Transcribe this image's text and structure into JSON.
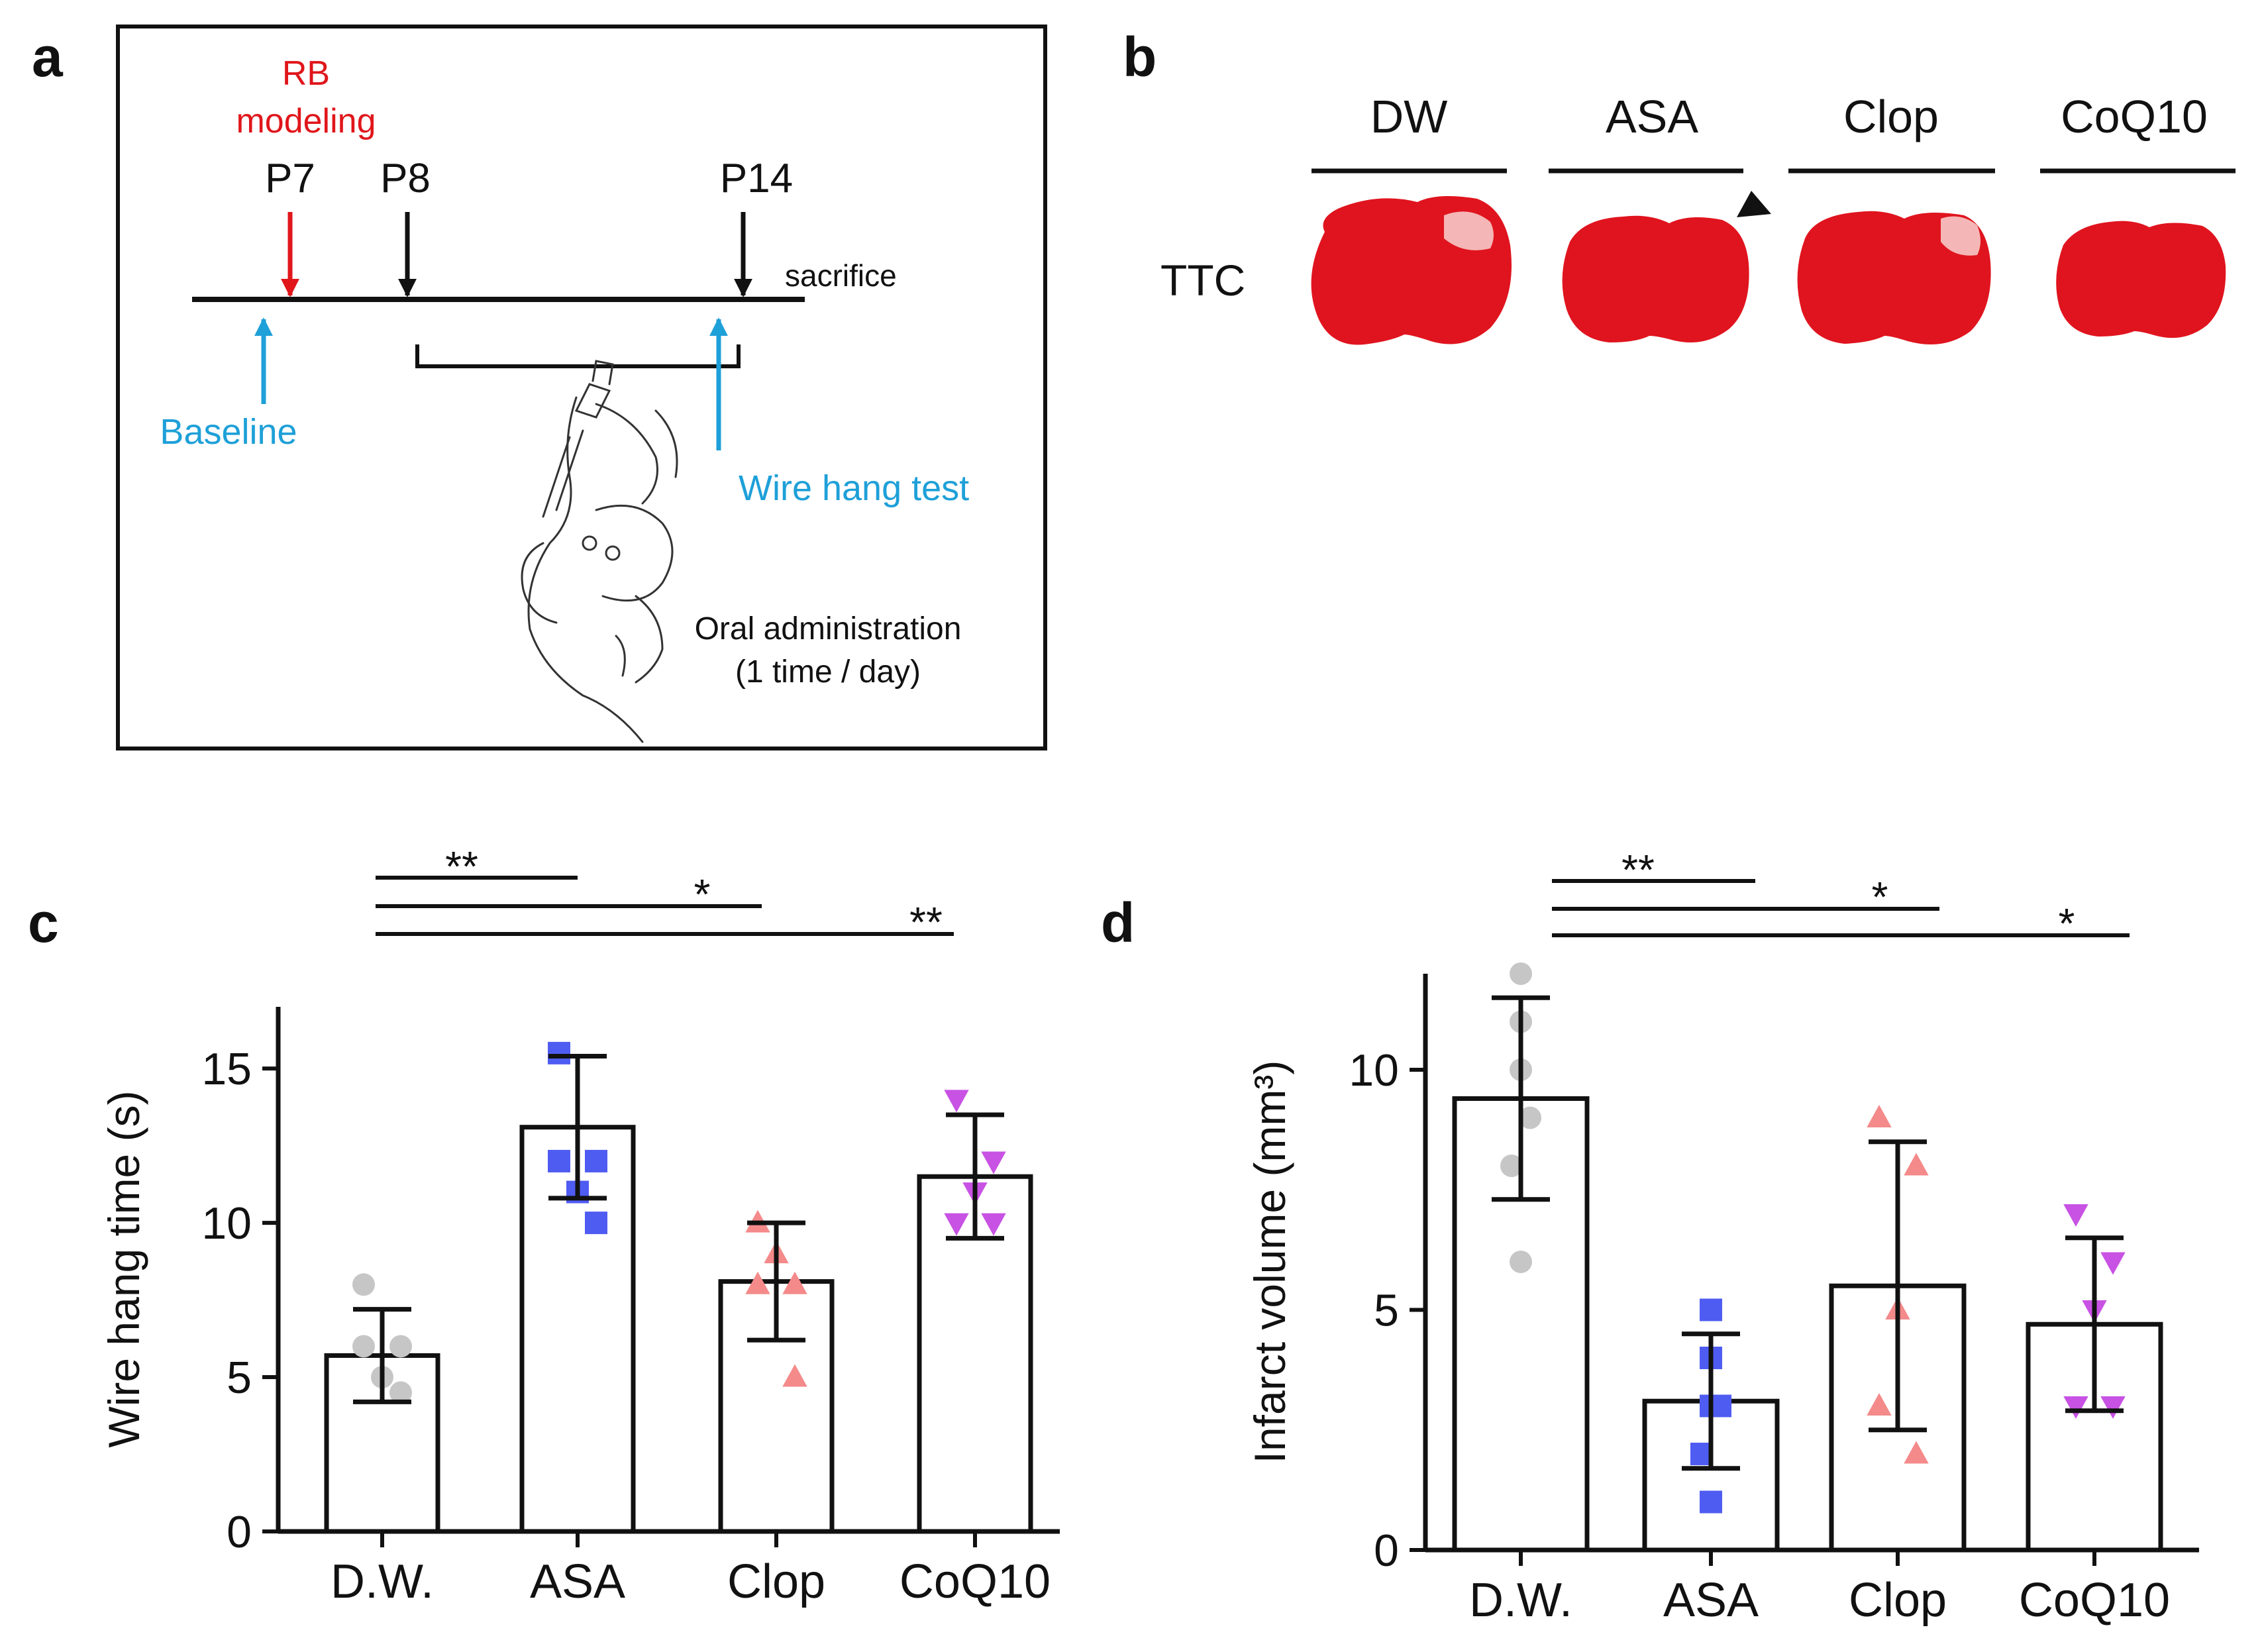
{
  "colors": {
    "red": "#e0161b",
    "blue": "#1ea0d8",
    "black": "#111111",
    "grey_point": "#c6c6c6",
    "asa_point": "#4f5cf2",
    "clop_point": "#f48a8a",
    "coq10_point": "#c852e3",
    "brain": "#e0141e"
  },
  "panel_a": {
    "label": "a",
    "rb_line1": "RB",
    "rb_line2": "modeling",
    "p7": "P7",
    "p8": "P8",
    "p14": "P14",
    "sacrifice": "sacrifice",
    "baseline": "Baseline",
    "wire_hang": "Wire hang test",
    "oral_line1": "Oral administration",
    "oral_line2": "(1 time / day)",
    "illustration_icon": "mouse-oral-gavage-drawing"
  },
  "panel_b": {
    "label": "b",
    "row_label": "TTC",
    "groups": [
      "DW",
      "ASA",
      "Clop",
      "CoQ10"
    ],
    "arrowhead_icon": "triangle-arrowhead-icon"
  },
  "panel_c": {
    "label": "c",
    "sig": [
      "**",
      "*",
      "**"
    ]
  },
  "panel_d": {
    "label": "d",
    "sig": [
      "**",
      "*",
      "*"
    ]
  },
  "chart_data": [
    {
      "panel": "c",
      "type": "bar",
      "categories": [
        "D.W.",
        "ASA",
        "Clop",
        "CoQ10"
      ],
      "values": [
        5.7,
        13.1,
        8.1,
        11.5
      ],
      "error": [
        1.5,
        2.3,
        1.9,
        2.0
      ],
      "points": [
        [
          8,
          6,
          5,
          6,
          4.5
        ],
        [
          15.5,
          12,
          11,
          12,
          10
        ],
        [
          10,
          8,
          9,
          8,
          5
        ],
        [
          14,
          12,
          11,
          10,
          10
        ]
      ],
      "markers": [
        "circle",
        "square",
        "triangle-up",
        "triangle-down"
      ],
      "ylabel": "Wire hang time (s)",
      "xlabel": "",
      "ylim": [
        0,
        17
      ],
      "yticks": [
        0,
        5,
        10,
        15
      ],
      "ytick_labels": [
        "0",
        "5",
        "10",
        "15"
      ],
      "grid": false
    },
    {
      "panel": "d",
      "type": "bar",
      "categories": [
        "D.W.",
        "ASA",
        "Clop",
        "CoQ10"
      ],
      "values": [
        9.4,
        3.1,
        5.5,
        4.7
      ],
      "error": [
        2.1,
        1.4,
        3.0,
        1.8
      ],
      "points": [
        [
          12,
          11,
          10,
          9,
          8,
          6
        ],
        [
          5,
          4,
          3,
          3,
          2,
          1
        ],
        [
          9,
          8,
          5,
          3,
          2
        ],
        [
          7,
          6,
          5,
          3,
          3
        ]
      ],
      "markers": [
        "circle",
        "square",
        "triangle-up",
        "triangle-down"
      ],
      "ylabel": "Infarct volume (mm³)",
      "xlabel": "",
      "ylim": [
        0,
        12
      ],
      "yticks": [
        0,
        5,
        10
      ],
      "ytick_labels": [
        "0",
        "5",
        "10"
      ],
      "grid": false
    }
  ]
}
